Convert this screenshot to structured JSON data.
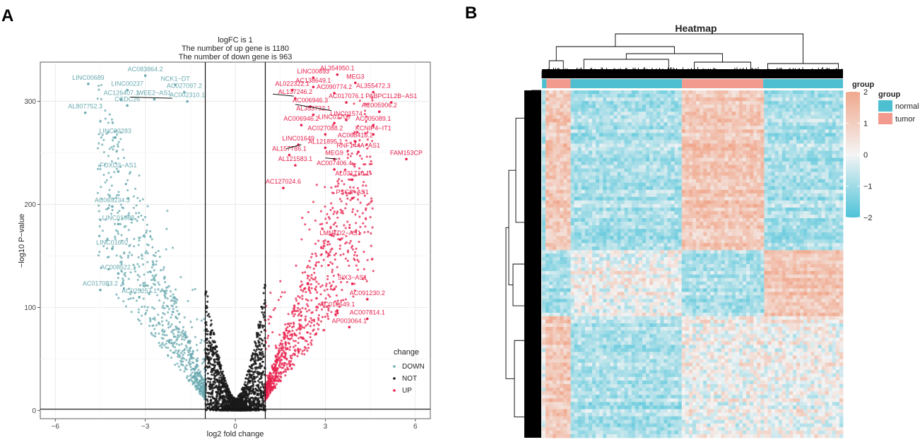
{
  "panels": {
    "a": "A",
    "b": "B"
  },
  "chart_data": [
    {
      "type": "scatter",
      "panel": "A",
      "title_lines": [
        "logFC is 1",
        "The number of up gene is 1180",
        "The number of down gene is 963"
      ],
      "xlabel": "log2 fold change",
      "ylabel": "−log10 P−value",
      "xlim": [
        -6.5,
        6.5
      ],
      "ylim": [
        -8,
        338
      ],
      "xticks": [
        -6,
        -3,
        0,
        3,
        6
      ],
      "xtick_labels": [
        "−6",
        "−3",
        "0",
        "3",
        "6"
      ],
      "yticks": [
        0,
        100,
        200,
        300
      ],
      "ytick_labels": [
        "0",
        "100",
        "200",
        "300"
      ],
      "threshold_lines_x": [
        -1,
        1
      ],
      "threshold_line_y": 1.3,
      "legend": {
        "title": "change",
        "entries": [
          "DOWN",
          "NOT",
          "UP"
        ],
        "position": "bottom-right"
      },
      "colors": {
        "DOWN": "#6aaab0",
        "NOT": "#1a1a1a",
        "UP": "#e8204c"
      },
      "counts": {
        "up": 1180,
        "down": 963
      },
      "labeled_points": [
        {
          "label": "LINC00689",
          "x": -4.9,
          "y": 321,
          "group": "DOWN"
        },
        {
          "label": "AC083864.2",
          "x": -3.0,
          "y": 329,
          "group": "DOWN"
        },
        {
          "label": "NCK1−DT",
          "x": -2.0,
          "y": 320,
          "group": "DOWN"
        },
        {
          "label": "LINC00237",
          "x": -3.6,
          "y": 315,
          "group": "DOWN"
        },
        {
          "label": "AC027097.2",
          "x": -1.7,
          "y": 313,
          "group": "DOWN"
        },
        {
          "label": "AC126407.1",
          "x": -3.8,
          "y": 306,
          "group": "DOWN"
        },
        {
          "label": "WEE2−AS1",
          "x": -2.7,
          "y": 306,
          "group": "DOWN"
        },
        {
          "label": "AC002310.1",
          "x": -1.6,
          "y": 304,
          "group": "DOWN"
        },
        {
          "label": "CCDC26",
          "x": -3.6,
          "y": 300,
          "group": "DOWN"
        },
        {
          "label": "AL807752.3",
          "x": -5.0,
          "y": 293,
          "group": "DOWN"
        },
        {
          "label": "LINC02283",
          "x": -4.0,
          "y": 269,
          "group": "DOWN"
        },
        {
          "label": "FOXD3−AS1",
          "x": -3.9,
          "y": 236,
          "group": "DOWN"
        },
        {
          "label": "AC069234.3",
          "x": -4.1,
          "y": 202,
          "group": "DOWN"
        },
        {
          "label": "LINC01088",
          "x": -3.9,
          "y": 185,
          "group": "DOWN"
        },
        {
          "label": "LINC01602",
          "x": -4.1,
          "y": 161,
          "group": "DOWN"
        },
        {
          "label": "AC008522.1",
          "x": -3.9,
          "y": 137,
          "group": "DOWN"
        },
        {
          "label": "AC017083.2",
          "x": -4.5,
          "y": 121,
          "group": "DOWN"
        },
        {
          "label": "AC025257.1",
          "x": -3.2,
          "y": 114,
          "group": "DOWN"
        },
        {
          "label": "LINC00893",
          "x": 2.6,
          "y": 327,
          "group": "UP"
        },
        {
          "label": "AL354950.1",
          "x": 3.4,
          "y": 330,
          "group": "UP"
        },
        {
          "label": "MEG3",
          "x": 4.0,
          "y": 322,
          "group": "UP"
        },
        {
          "label": "AC138649.1",
          "x": 2.6,
          "y": 318,
          "group": "UP"
        },
        {
          "label": "AL022322.1",
          "x": 1.9,
          "y": 315,
          "group": "UP"
        },
        {
          "label": "AC090774.2",
          "x": 3.3,
          "y": 312,
          "group": "UP"
        },
        {
          "label": "AL355472.3",
          "x": 4.6,
          "y": 313,
          "group": "UP"
        },
        {
          "label": "AL137246.2",
          "x": 2.0,
          "y": 307,
          "group": "UP"
        },
        {
          "label": "AC017076.1",
          "x": 3.7,
          "y": 303,
          "group": "UP"
        },
        {
          "label": "PABPC1L2B−AS1",
          "x": 5.2,
          "y": 303,
          "group": "UP"
        },
        {
          "label": "AC006946.3",
          "x": 2.5,
          "y": 299,
          "group": "UP"
        },
        {
          "label": "AC005906.2",
          "x": 4.8,
          "y": 294,
          "group": "UP"
        },
        {
          "label": "AL353732.1",
          "x": 2.6,
          "y": 291,
          "group": "UP"
        },
        {
          "label": "LINC01574",
          "x": 3.7,
          "y": 286,
          "group": "UP"
        },
        {
          "label": "AC005089.1",
          "x": 4.6,
          "y": 281,
          "group": "UP"
        },
        {
          "label": "AC006946.2",
          "x": 2.2,
          "y": 281,
          "group": "UP"
        },
        {
          "label": "LINC01700",
          "x": 3.3,
          "y": 283,
          "group": "UP"
        },
        {
          "label": "KCNIP4−IT1",
          "x": 4.6,
          "y": 272,
          "group": "UP"
        },
        {
          "label": "AC027088.2",
          "x": 3.0,
          "y": 272,
          "group": "UP"
        },
        {
          "label": "AC068418.2",
          "x": 4.0,
          "y": 265,
          "group": "UP"
        },
        {
          "label": "LINC01649",
          "x": 2.1,
          "y": 262,
          "group": "UP"
        },
        {
          "label": "AL121895.1",
          "x": 3.0,
          "y": 259,
          "group": "UP"
        },
        {
          "label": "RNF144A−AS1",
          "x": 4.1,
          "y": 255,
          "group": "UP"
        },
        {
          "label": "AL157786.1",
          "x": 1.8,
          "y": 252,
          "group": "UP"
        },
        {
          "label": "MEG9",
          "x": 3.3,
          "y": 248,
          "group": "UP"
        },
        {
          "label": "FAM153CP",
          "x": 5.7,
          "y": 248,
          "group": "UP"
        },
        {
          "label": "AL121583.1",
          "x": 2.0,
          "y": 242,
          "group": "UP"
        },
        {
          "label": "AC007406.4",
          "x": 3.3,
          "y": 238,
          "group": "UP"
        },
        {
          "label": "AL031710.1",
          "x": 3.9,
          "y": 228,
          "group": "UP"
        },
        {
          "label": "AC127024.6",
          "x": 1.6,
          "y": 220,
          "group": "UP"
        },
        {
          "label": "PSG8−AS1",
          "x": 3.9,
          "y": 210,
          "group": "UP"
        },
        {
          "label": "LMNTD2−AS1",
          "x": 3.5,
          "y": 170,
          "group": "UP"
        },
        {
          "label": "SIX3−AS1",
          "x": 3.9,
          "y": 127,
          "group": "UP"
        },
        {
          "label": "AC091230.2",
          "x": 4.4,
          "y": 112,
          "group": "UP"
        },
        {
          "label": "AC010649.1",
          "x": 3.4,
          "y": 101,
          "group": "UP"
        },
        {
          "label": "AC007814.1",
          "x": 4.4,
          "y": 93,
          "group": "UP"
        },
        {
          "label": "AP003064.1",
          "x": 3.8,
          "y": 85,
          "group": "UP"
        }
      ]
    },
    {
      "type": "heatmap",
      "panel": "B",
      "title": "Heatmap",
      "annotation_title": "group",
      "annotation_legend": {
        "title": "group",
        "entries": [
          "normal",
          "tumor"
        ]
      },
      "group_colors": {
        "normal": "#4dbfd0",
        "tumor": "#f29a8e"
      },
      "column_groups": [
        "normal",
        "tumor",
        "normal",
        "tumor",
        "normal"
      ],
      "column_group_fractions": [
        0.015,
        0.08,
        0.37,
        0.27,
        0.265
      ],
      "colorbar": {
        "min": -2,
        "max": 2,
        "ticks": [
          2,
          1,
          0,
          -1,
          -2
        ],
        "tick_labels": [
          "2",
          "1",
          "0",
          "−1",
          "−2"
        ],
        "low_color": "#4dc3d9",
        "mid_color": "#f4f4f4",
        "high_color": "#f0a88c"
      },
      "row_blocks": [
        {
          "rows_fraction": 0.46,
          "pattern": [
            "low",
            "high",
            "low",
            "high",
            "low"
          ]
        },
        {
          "rows_fraction": 0.19,
          "pattern": [
            "low",
            "low",
            "mixed",
            "low",
            "high"
          ]
        },
        {
          "rows_fraction": 0.35,
          "pattern": [
            "mixed",
            "high",
            "low",
            "mixed",
            "mixed"
          ]
        }
      ]
    }
  ]
}
